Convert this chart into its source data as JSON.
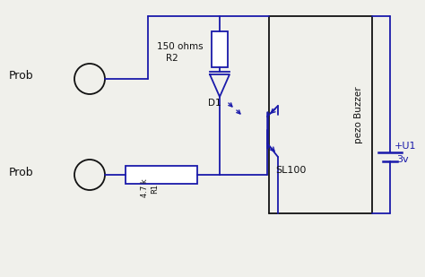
{
  "bg_color": "#f0f0eb",
  "line_color": "#1a1aaa",
  "black_color": "#111111",
  "prob_top_label": "Prob",
  "prob_bottom_label": "Prob",
  "r2_label1": "150 ohms",
  "r2_label2": "R2",
  "r1_label1": "4.7 k",
  "r1_label2": "R1",
  "d1_label": "D1",
  "transistor_label": "SL100",
  "buzzer_label": "pezo Buzzer",
  "battery_label1": "+U1",
  "battery_label2": "3v"
}
